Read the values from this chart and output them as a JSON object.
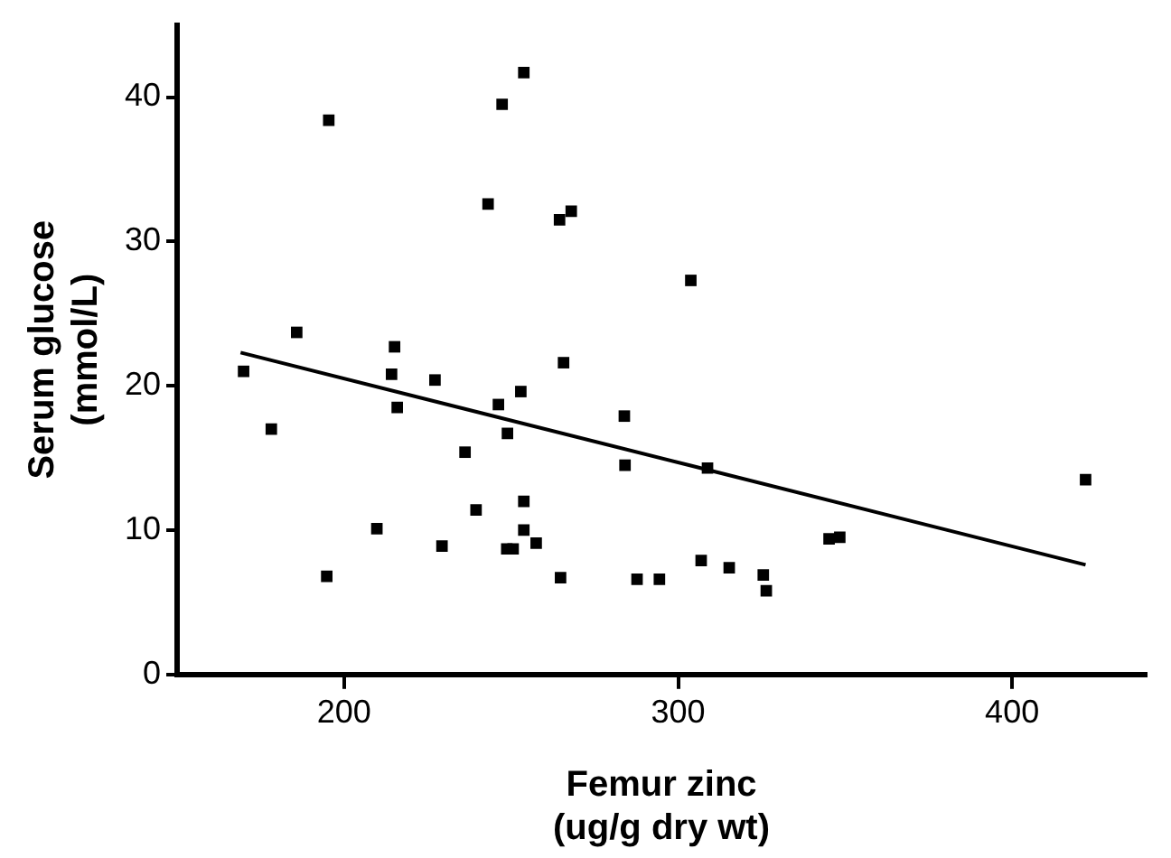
{
  "chart_data": {
    "type": "scatter",
    "xlabel": "Femur zinc\n(ug/g dry wt)",
    "ylabel": "Serum glucose\n(mmol/L)",
    "xlim": [
      150,
      440
    ],
    "xticks": [
      200,
      300,
      400
    ],
    "ylim": [
      0,
      45
    ],
    "yticks": [
      0,
      10,
      20,
      30,
      40
    ],
    "grid": false,
    "legend": false,
    "marker": "square",
    "series": [
      {
        "color": "#000000",
        "x": [
          195.4,
          247.3,
          253.8,
          243.1,
          264.5,
          268,
          185.8,
          215.1,
          169.9,
          214.2,
          227.2,
          265.7,
          178.2,
          215.9,
          246.2,
          252.9,
          248.9,
          236.2,
          253.8,
          239.5,
          209.8,
          253.8,
          257.5,
          229.3,
          248.7,
          250.6,
          194.8,
          264.8,
          283.9,
          284.1,
          308.8,
          303.8,
          287.7,
          294.4,
          306.9,
          315.3,
          325.5,
          326.4,
          345.2,
          348.4,
          422
        ],
        "values": [
          38.4,
          39.5,
          41.7,
          32.6,
          31.5,
          32.1,
          23.7,
          22.7,
          21.0,
          20.8,
          20.4,
          21.6,
          17.0,
          18.5,
          18.7,
          19.6,
          16.7,
          15.4,
          12.0,
          11.4,
          10.1,
          10.0,
          9.1,
          8.9,
          8.7,
          8.7,
          6.8,
          6.7,
          17.9,
          14.5,
          14.3,
          27.3,
          6.6,
          6.6,
          7.9,
          7.4,
          6.9,
          5.8,
          9.4,
          9.5,
          13.5
        ]
      },
      {
        "type": "line",
        "color": "#000000",
        "x": [
          169,
          422
        ],
        "values": [
          22.3,
          7.6
        ],
        "marker": "none",
        "line_style": "solid"
      }
    ]
  }
}
